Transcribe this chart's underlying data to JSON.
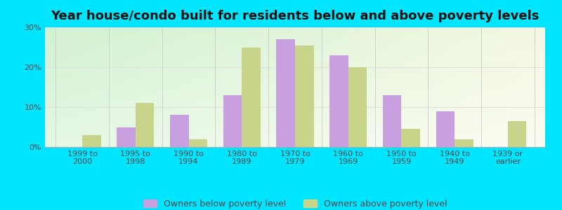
{
  "title": "Year house/condo built for residents below and above poverty levels",
  "categories": [
    "1999 to\n2000",
    "1995 to\n1998",
    "1990 to\n1994",
    "1980 to\n1989",
    "1970 to\n1979",
    "1960 to\n1969",
    "1950 to\n1959",
    "1940 to\n1949",
    "1939 or\nearlier"
  ],
  "below_poverty": [
    0,
    5,
    8,
    13,
    27,
    23,
    13,
    9,
    0
  ],
  "above_poverty": [
    3,
    11,
    2,
    25,
    25.5,
    20,
    4.5,
    2,
    6.5
  ],
  "below_color": "#c8a0e0",
  "above_color": "#c8d48a",
  "ylim": [
    0,
    30
  ],
  "yticks": [
    0,
    10,
    20,
    30
  ],
  "ytick_labels": [
    "0%",
    "10%",
    "20%",
    "30%"
  ],
  "outer_background": "#00e5ff",
  "bar_width": 0.35,
  "legend_below_label": "Owners below poverty level",
  "legend_above_label": "Owners above poverty level",
  "title_fontsize": 13,
  "tick_fontsize": 8,
  "legend_fontsize": 9,
  "grid_color": "#e0e0e0",
  "separator_color": "#cccccc"
}
